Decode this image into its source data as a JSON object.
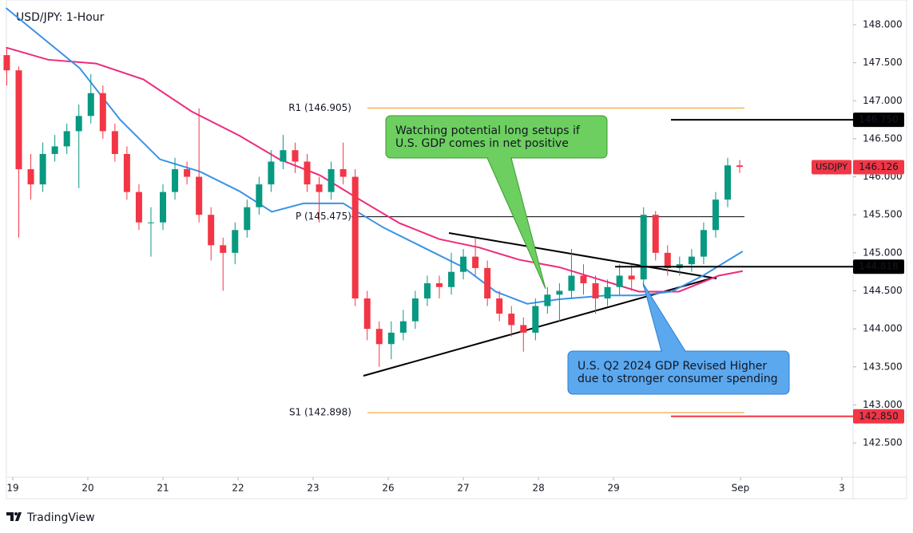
{
  "chart_data": {
    "type": "candlestick",
    "title": "USD/JPY: 1-Hour",
    "up_color": "#089981",
    "down_color": "#f23645",
    "x": [
      -0.08,
      0.08,
      0.24,
      0.4,
      0.56,
      0.72,
      0.88,
      1.04,
      1.2,
      1.36,
      1.52,
      1.68,
      1.84,
      2.0,
      2.16,
      2.32,
      2.48,
      2.64,
      2.8,
      2.96,
      3.12,
      3.28,
      3.44,
      3.6,
      3.76,
      3.92,
      4.08,
      4.24,
      4.4,
      4.56,
      4.72,
      4.88,
      5.04,
      5.2,
      5.36,
      5.52,
      5.68,
      5.84,
      6.0,
      6.16,
      6.32,
      6.48,
      6.64,
      6.8,
      6.96,
      7.12,
      7.28,
      7.44,
      7.6,
      7.76,
      7.92,
      8.08,
      8.24,
      8.4,
      8.56,
      8.72,
      8.88,
      9.04,
      9.2,
      9.36,
      9.52,
      9.68
    ],
    "open": [
      147.6,
      147.4,
      146.1,
      145.9,
      146.3,
      146.4,
      146.6,
      146.8,
      147.1,
      146.6,
      146.3,
      145.8,
      145.4,
      145.4,
      145.8,
      146.1,
      146.0,
      145.5,
      145.1,
      145.0,
      145.3,
      145.6,
      145.9,
      146.2,
      146.35,
      146.2,
      145.9,
      145.8,
      146.1,
      146.0,
      144.4,
      144.0,
      143.8,
      143.95,
      144.1,
      144.4,
      144.6,
      144.55,
      144.75,
      144.95,
      144.8,
      144.4,
      144.2,
      144.05,
      143.95,
      144.3,
      144.45,
      144.5,
      144.7,
      144.6,
      144.4,
      144.55,
      144.7,
      144.65,
      145.5,
      145.0,
      144.8,
      144.85,
      144.95,
      145.3,
      145.7,
      146.15
    ],
    "high": [
      147.7,
      147.45,
      146.3,
      146.45,
      146.55,
      146.7,
      146.95,
      147.35,
      147.2,
      146.7,
      146.4,
      145.9,
      145.6,
      145.9,
      146.25,
      146.2,
      146.9,
      145.6,
      145.2,
      145.4,
      145.7,
      146.0,
      146.35,
      146.55,
      146.45,
      146.3,
      146.0,
      146.2,
      146.45,
      146.1,
      144.5,
      144.1,
      144.1,
      144.25,
      144.5,
      144.7,
      144.7,
      145.0,
      145.05,
      145.2,
      144.9,
      144.5,
      144.3,
      144.15,
      144.4,
      144.55,
      144.6,
      145.05,
      144.85,
      144.7,
      144.65,
      144.85,
      144.85,
      145.6,
      145.55,
      145.1,
      144.95,
      145.05,
      145.4,
      145.8,
      146.25,
      146.22
    ],
    "low": [
      147.2,
      145.2,
      145.7,
      145.8,
      146.2,
      146.3,
      145.85,
      146.7,
      146.5,
      146.2,
      145.7,
      145.3,
      144.95,
      145.3,
      145.7,
      145.9,
      145.4,
      144.9,
      144.5,
      144.85,
      145.2,
      145.5,
      145.8,
      146.1,
      146.05,
      145.8,
      145.4,
      145.7,
      145.9,
      144.3,
      143.85,
      143.5,
      143.6,
      143.85,
      144.0,
      144.3,
      144.4,
      144.45,
      144.65,
      144.7,
      144.3,
      144.1,
      143.9,
      143.7,
      143.85,
      144.2,
      144.1,
      144.4,
      144.45,
      144.2,
      144.3,
      144.45,
      144.5,
      144.55,
      144.9,
      144.7,
      144.7,
      144.75,
      144.85,
      145.2,
      145.6,
      146.05
    ],
    "close": [
      147.4,
      146.1,
      145.9,
      146.3,
      146.4,
      146.6,
      146.8,
      147.1,
      146.6,
      146.3,
      145.8,
      145.4,
      145.4,
      145.8,
      146.1,
      146.0,
      145.5,
      145.1,
      145.0,
      145.3,
      145.6,
      145.9,
      146.2,
      146.35,
      146.2,
      145.9,
      145.8,
      146.1,
      146.0,
      144.4,
      144.0,
      143.8,
      143.95,
      144.1,
      144.4,
      144.6,
      144.55,
      144.75,
      144.95,
      144.8,
      144.4,
      144.2,
      144.05,
      143.95,
      144.3,
      144.45,
      144.5,
      144.7,
      144.6,
      144.4,
      144.55,
      144.7,
      144.65,
      145.5,
      145.0,
      144.8,
      144.85,
      144.95,
      145.3,
      145.7,
      146.15,
      146.13
    ],
    "lines": [
      {
        "color": "#ee2a7b",
        "x": [
          -0.09,
          0.47,
          1.11,
          1.74,
          2.38,
          3.02,
          3.55,
          4.09,
          4.62,
          5.15,
          5.68,
          6.21,
          6.74,
          7.28,
          7.81,
          8.34,
          8.87,
          9.4,
          9.72
        ],
        "values": [
          147.7,
          147.54,
          147.49,
          147.28,
          146.86,
          146.54,
          146.23,
          146.02,
          145.7,
          145.39,
          145.18,
          145.07,
          144.91,
          144.81,
          144.65,
          144.49,
          144.49,
          144.7,
          144.76
        ]
      },
      {
        "color": "#3a92e8",
        "x": [
          -0.09,
          0.89,
          1.43,
          1.96,
          2.49,
          3.02,
          3.45,
          3.87,
          4.4,
          4.94,
          5.47,
          6.0,
          6.43,
          6.85,
          7.28,
          7.91,
          8.34,
          8.77,
          9.19,
          9.72
        ],
        "values": [
          148.22,
          147.43,
          146.75,
          146.23,
          146.07,
          145.81,
          145.54,
          145.65,
          145.65,
          145.33,
          145.07,
          144.81,
          144.49,
          144.33,
          144.39,
          144.44,
          144.44,
          144.49,
          144.7,
          145.02
        ]
      }
    ],
    "xlim": [
      -0.085,
      11.19
    ],
    "ylim": [
      142.05,
      148.325
    ],
    "xticks": [
      {
        "value": 0,
        "label": "19"
      },
      {
        "value": 1,
        "label": "20"
      },
      {
        "value": 2,
        "label": "21"
      },
      {
        "value": 3,
        "label": "22"
      },
      {
        "value": 4,
        "label": "23"
      },
      {
        "value": 5,
        "label": "26"
      },
      {
        "value": 6,
        "label": "27"
      },
      {
        "value": 7,
        "label": "28"
      },
      {
        "value": 8,
        "label": "29"
      },
      {
        "value": 9.69,
        "label": "Sep"
      },
      {
        "value": 11.04,
        "label": "3"
      }
    ],
    "yticks": [
      {
        "value": 142.5,
        "label": "142.500"
      },
      {
        "value": 143,
        "label": "143.000"
      },
      {
        "value": 143.5,
        "label": "143.500"
      },
      {
        "value": 144,
        "label": "144.000"
      },
      {
        "value": 144.5,
        "label": "144.500"
      },
      {
        "value": 145,
        "label": "145.000"
      },
      {
        "value": 145.5,
        "label": "145.500"
      },
      {
        "value": 146,
        "label": "146.000"
      },
      {
        "value": 146.5,
        "label": "146.500"
      },
      {
        "value": 147,
        "label": "147.000"
      },
      {
        "value": 147.5,
        "label": "147.500"
      },
      {
        "value": 148,
        "label": "148.000"
      }
    ],
    "pivots": [
      {
        "label": "R1 (146.905)",
        "value": 146.905,
        "color": "#f7931a"
      },
      {
        "label": "P (145.475)",
        "value": 145.475,
        "color": "#000000"
      },
      {
        "label": "S1 (142.898)",
        "value": 142.898,
        "color": "#f7931a"
      }
    ],
    "price_markers": [
      {
        "value": 146.75,
        "label": "146.750",
        "color": "#000000"
      },
      {
        "value": 144.818,
        "label": "144.818",
        "color": "#000000"
      },
      {
        "value": 142.85,
        "label": "142.850",
        "color": "#f23645"
      }
    ],
    "last_price": {
      "name": "USDJPY",
      "value": 146.126,
      "color": "#f23645"
    },
    "annotations": [
      {
        "lines": [
          "Watching potential long setups if",
          "U.S. GDP comes in net positive"
        ]
      },
      {
        "lines": [
          "U.S. Q2 2024 GDP Revised Higher",
          "due to stronger consumer spending"
        ]
      }
    ]
  },
  "footer": "TradingView"
}
